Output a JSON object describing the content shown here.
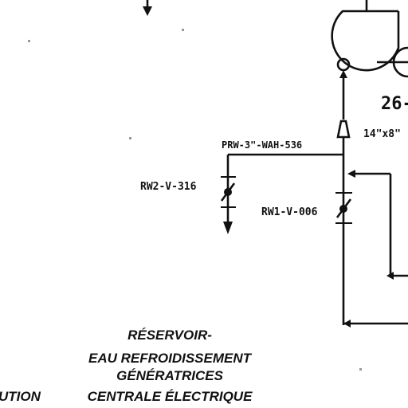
{
  "labels": {
    "line_pipe": "PRW-3\"-WAH-536",
    "valve_left": "RW2-V-316",
    "valve_right": "RW1-V-006",
    "reducer_size": "14\"x8\"",
    "pump_tag": "26-"
  },
  "caption": {
    "line1": "RÉSERVOIR-",
    "line2": "EAU REFROIDISSEMENT",
    "line3": "GÉNÉRATRICES",
    "line4": "CENTRALE ÉLECTRIQUE",
    "left_fragment": "UTION"
  }
}
